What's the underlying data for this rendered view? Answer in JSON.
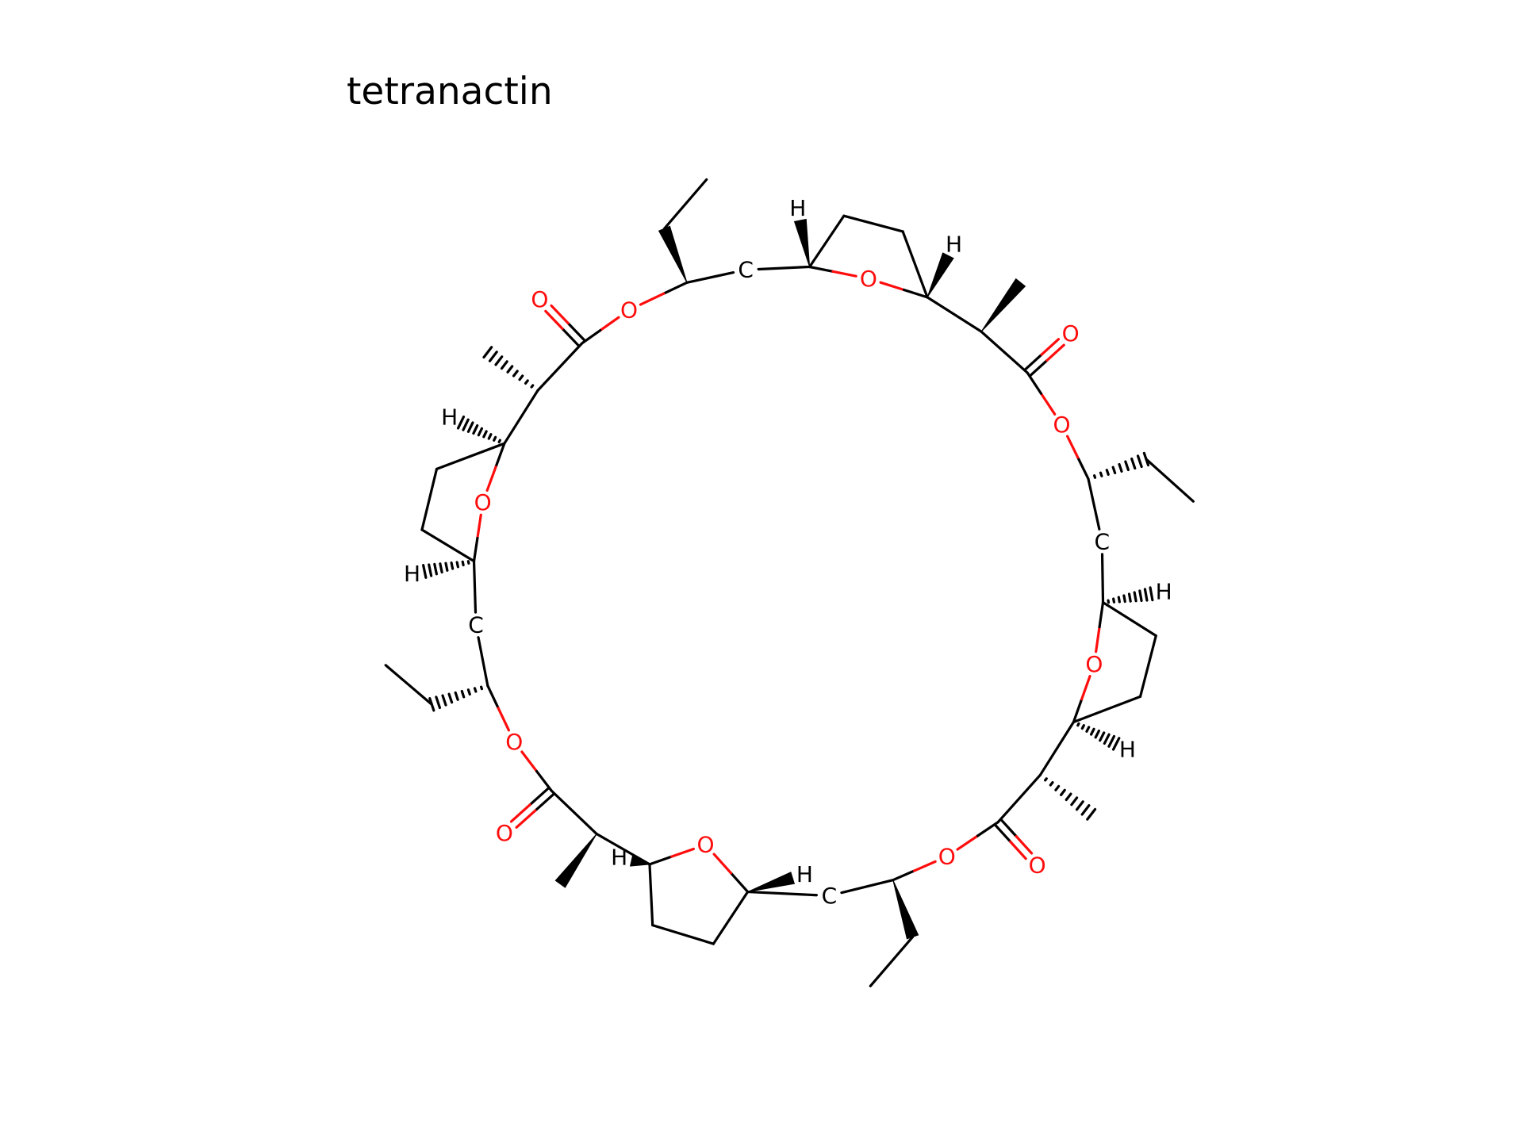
{
  "title": "tetranactin",
  "colors": {
    "carbon": "#000000",
    "oxygen": "#ff0d0d",
    "hydrogen": "#000000",
    "background": "#ffffff"
  },
  "labels": {
    "oxygen": "O",
    "carbon": "C",
    "hydrogen": "H"
  }
}
